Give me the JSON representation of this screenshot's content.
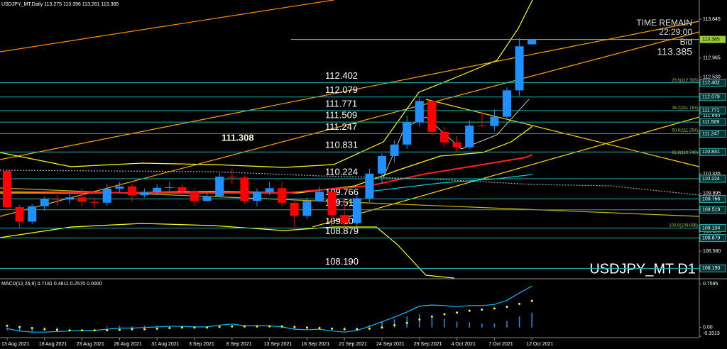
{
  "chart_data": [
    {
      "type": "candlestick",
      "title": "USDJPY_MT,Daily 113.275 113.396 113.261 113.385",
      "symbol_label": "USDJPY_MT D1",
      "time_remain": {
        "label": "TIME REMAIN",
        "value": "22:29:00"
      },
      "bid": {
        "label": "Bid",
        "value": 113.385
      },
      "high_label": 111.308,
      "categories": [
        "13 Aug 2021",
        null,
        null,
        "18 Aug 2021",
        null,
        null,
        "23 Aug 2021",
        null,
        null,
        "26 Aug 2021",
        null,
        null,
        "31 Aug 2021",
        null,
        null,
        "3 Sep 2021",
        null,
        null,
        "8 Sep 2021",
        null,
        null,
        "13 Sep 2021",
        null,
        null,
        "16 Sep 2021",
        null,
        null,
        "21 Sep 2021",
        null,
        null,
        "24 Sep 2021",
        null,
        null,
        "29 Sep 2021",
        null,
        null,
        "4 Oct 2021",
        null,
        null,
        "7 Oct 2021",
        null,
        null,
        "12 Oct 2021"
      ],
      "open": [
        110.4,
        109.58,
        109.25,
        109.6,
        109.77,
        109.75,
        109.8,
        109.7,
        109.68,
        110.0,
        110.05,
        109.85,
        109.92,
        110.02,
        110.03,
        109.93,
        109.72,
        109.83,
        110.27,
        110.25,
        109.72,
        109.92,
        110.01,
        109.68,
        109.38,
        109.72,
        109.93,
        109.4,
        109.22,
        109.78,
        110.34,
        110.74,
        111.0,
        111.5,
        111.99,
        111.29,
        111.05,
        110.94,
        111.43,
        111.42,
        111.63,
        112.23,
        113.275
      ],
      "high": [
        110.45,
        109.63,
        109.65,
        109.82,
        109.85,
        109.95,
        110.0,
        109.8,
        110.1,
        110.15,
        110.1,
        110.0,
        110.1,
        110.15,
        110.1,
        110.0,
        109.9,
        110.35,
        110.45,
        110.3,
        110.0,
        110.15,
        110.15,
        109.75,
        109.8,
        110.05,
        109.95,
        109.8,
        109.85,
        110.45,
        110.8,
        111.1,
        111.65,
        112.08,
        112.0,
        111.4,
        111.2,
        111.55,
        111.75,
        111.8,
        112.3,
        113.41,
        113.396
      ],
      "low": [
        109.55,
        109.11,
        109.2,
        109.5,
        109.6,
        109.65,
        109.6,
        109.55,
        109.6,
        109.9,
        109.7,
        109.8,
        109.85,
        109.95,
        109.85,
        109.6,
        109.7,
        109.8,
        110.1,
        109.65,
        109.6,
        109.85,
        109.6,
        109.1,
        109.3,
        109.7,
        109.1,
        109.1,
        109.15,
        109.7,
        110.1,
        110.6,
        110.9,
        111.4,
        111.2,
        110.95,
        110.82,
        110.9,
        111.4,
        111.3,
        111.55,
        112.1,
        113.261
      ],
      "close": [
        109.58,
        109.25,
        109.6,
        109.77,
        109.75,
        109.8,
        109.7,
        109.68,
        110.0,
        110.05,
        109.85,
        109.92,
        110.02,
        110.03,
        109.93,
        109.72,
        109.83,
        110.27,
        110.25,
        109.72,
        109.92,
        110.01,
        109.68,
        109.38,
        109.72,
        109.93,
        109.4,
        109.22,
        109.78,
        110.34,
        110.74,
        111.0,
        111.5,
        111.99,
        111.29,
        111.05,
        110.94,
        111.43,
        111.42,
        111.63,
        112.23,
        113.23,
        113.385
      ],
      "up_color": "#1e90ff",
      "down_color": "#ff0000",
      "level_color": "#20b2aa",
      "levels": [
        112.402,
        112.079,
        111.771,
        111.509,
        111.247,
        110.831,
        110.224,
        109.766,
        109.519,
        109.104,
        108.879,
        {
          "value": 108.19,
          "label": "108.190"
        }
      ],
      "fib_levels": [
        {
          "value": 112.393,
          "label": "23.6(112.393)"
        },
        {
          "value": 111.763,
          "label": "38.2(111.763)"
        },
        {
          "value": 111.254,
          "label": "50.0(111.254)"
        },
        {
          "value": 110.745,
          "label": "61.8(110.745)"
        },
        {
          "value": 109.096,
          "label": "100.0(109.096)"
        }
      ],
      "ylim": [
        107.97,
        114.28
      ],
      "yticks": [
        113.845,
        112.965,
        {
          "value": 112.53,
          "label": "112.530"
        },
        {
          "value": 111.65,
          "label": "111.650"
        },
        110.335,
        109.895,
        {
          "value": 109.02,
          "label": "109.020"
        },
        {
          "value": 108.58,
          "label": "108.580"
        }
      ]
    },
    {
      "type": "macd",
      "title": "MACD(12,26,9) 0.7181 0.4611 0.2570 0.0000",
      "macd": [
        -0.02,
        -0.06,
        -0.08,
        -0.08,
        -0.07,
        -0.06,
        -0.05,
        -0.05,
        -0.03,
        -0.01,
        -0.01,
        0.0,
        0.01,
        0.02,
        0.02,
        0.01,
        0.01,
        0.04,
        0.06,
        0.03,
        0.03,
        0.03,
        0.01,
        -0.03,
        -0.04,
        -0.03,
        -0.06,
        -0.08,
        -0.05,
        0.02,
        0.1,
        0.18,
        0.27,
        0.37,
        0.39,
        0.38,
        0.36,
        0.38,
        0.38,
        0.4,
        0.47,
        0.6,
        0.7181
      ],
      "signal": [
        0.03,
        0.01,
        -0.01,
        -0.03,
        -0.04,
        -0.05,
        -0.05,
        -0.05,
        -0.05,
        -0.04,
        -0.03,
        -0.03,
        -0.02,
        -0.01,
        0.0,
        0.0,
        0.0,
        0.01,
        0.02,
        0.02,
        0.02,
        0.02,
        0.02,
        0.01,
        0.0,
        -0.01,
        -0.02,
        -0.03,
        -0.03,
        -0.02,
        0.0,
        0.04,
        0.08,
        0.14,
        0.19,
        0.23,
        0.26,
        0.29,
        0.31,
        0.33,
        0.36,
        0.41,
        0.4611
      ],
      "histogram": [
        -0.05,
        -0.07,
        -0.07,
        -0.05,
        -0.03,
        -0.01,
        0,
        0,
        0.02,
        0.03,
        0.02,
        0.03,
        0.03,
        0.03,
        0.02,
        0.01,
        0.01,
        0.03,
        0.04,
        0.01,
        0.01,
        0.01,
        -0.01,
        -0.04,
        -0.04,
        -0.02,
        -0.04,
        -0.05,
        -0.02,
        0.04,
        0.1,
        0.14,
        0.19,
        0.23,
        0.2,
        0.15,
        0.1,
        0.09,
        0.07,
        0.07,
        0.11,
        0.19,
        0.257
      ],
      "macd_color": "#00bfff",
      "signal_color": "#ffff00",
      "histogram_color": "#1e90ff",
      "ylim": [
        -0.1513,
        0.7595
      ],
      "yticks": [
        0.7595,
        {
          "value": 0,
          "label": "0.00"
        },
        -0.1513
      ]
    }
  ]
}
